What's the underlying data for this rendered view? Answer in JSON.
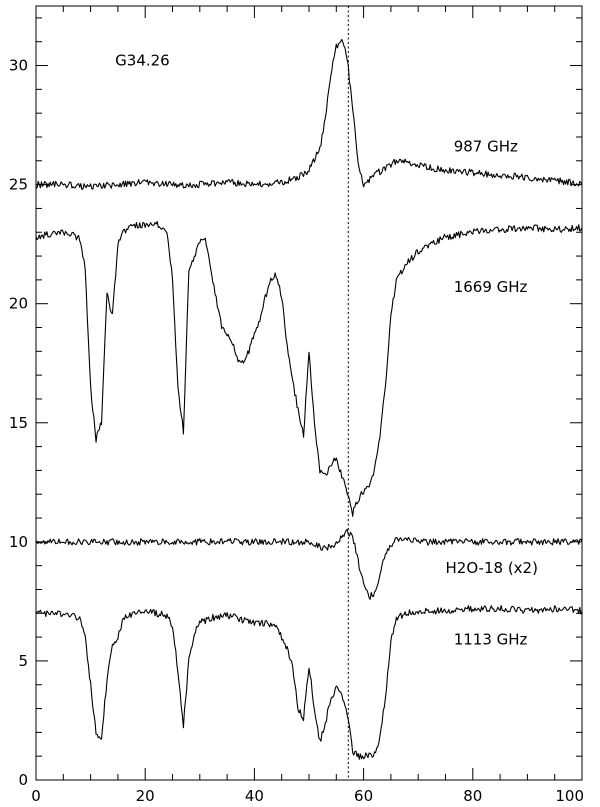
{
  "chart_data": {
    "type": "line",
    "title": "",
    "xlabel": "",
    "ylabel": "",
    "xlim": [
      0,
      100
    ],
    "ylim": [
      0,
      32.5
    ],
    "x_ticks": [
      0,
      20,
      40,
      60,
      80,
      100
    ],
    "y_ticks": [
      0,
      5,
      10,
      15,
      20,
      25,
      30
    ],
    "grid": false,
    "reference_line_x": 57.2,
    "annotations": [
      {
        "text": "G34.26",
        "x": 14.5,
        "y": 30.0
      },
      {
        "text": "987 GHz",
        "x": 76.5,
        "y": 26.4
      },
      {
        "text": "1669 GHz",
        "x": 76.5,
        "y": 20.5
      },
      {
        "text": "H2O-18 (x2)",
        "x": 75.0,
        "y": 8.7
      },
      {
        "text": "1113 GHz",
        "x": 76.5,
        "y": 5.7
      }
    ],
    "series": [
      {
        "name": "987 GHz",
        "x": [
          0,
          5,
          10,
          15,
          20,
          25,
          30,
          35,
          40,
          45,
          48,
          50,
          52,
          53,
          54,
          55,
          56,
          57,
          58,
          59,
          60,
          61,
          62,
          64,
          66,
          68,
          70,
          75,
          80,
          85,
          90,
          95,
          100
        ],
        "y": [
          25.0,
          25.0,
          24.9,
          25.0,
          25.1,
          25.0,
          25.0,
          25.1,
          25.0,
          25.1,
          25.3,
          25.6,
          26.5,
          27.8,
          29.6,
          30.8,
          31.1,
          30.3,
          28.2,
          26.0,
          25.0,
          25.2,
          25.4,
          25.7,
          26.0,
          26.0,
          25.8,
          25.6,
          25.5,
          25.4,
          25.3,
          25.2,
          25.0
        ]
      },
      {
        "name": "1669 GHz",
        "x": [
          0,
          2,
          4,
          6,
          8,
          9,
          10,
          11,
          12,
          13,
          14,
          15,
          16,
          17,
          18,
          20,
          22,
          24,
          25,
          26,
          27,
          28,
          29,
          30,
          31,
          32,
          34,
          36,
          37,
          38,
          39,
          40,
          41,
          42,
          43,
          44,
          45,
          46,
          47,
          48,
          49,
          50,
          51,
          52,
          53,
          54,
          55,
          56,
          57,
          58,
          59,
          60,
          61,
          62,
          63,
          64,
          65,
          66,
          68,
          70,
          75,
          80,
          85,
          90,
          95,
          100
        ],
        "y": [
          22.8,
          22.9,
          23.0,
          23.0,
          22.7,
          21.5,
          16.5,
          14.3,
          15.0,
          20.4,
          19.5,
          22.5,
          23.0,
          23.2,
          23.3,
          23.3,
          23.4,
          23.0,
          21.0,
          16.5,
          14.6,
          21.5,
          22.0,
          22.6,
          22.8,
          21.5,
          19.0,
          18.3,
          17.6,
          17.5,
          18.0,
          18.8,
          19.3,
          20.3,
          21.0,
          21.2,
          20.3,
          18.2,
          16.8,
          15.5,
          14.5,
          18.0,
          15.0,
          13.0,
          12.8,
          13.2,
          13.5,
          12.8,
          12.0,
          11.2,
          11.8,
          12.1,
          12.4,
          13.0,
          14.5,
          16.5,
          19.5,
          21.0,
          21.7,
          22.2,
          22.8,
          23.0,
          23.1,
          23.2,
          23.1,
          23.2
        ]
      },
      {
        "name": "H2O-18 (x2)",
        "x": [
          0,
          10,
          20,
          30,
          40,
          50,
          53,
          55,
          56,
          57,
          58,
          59,
          60,
          61,
          62,
          63,
          64,
          65,
          66,
          68,
          70,
          80,
          90,
          100
        ],
        "y": [
          10.0,
          10.0,
          10.0,
          10.0,
          10.0,
          10.0,
          9.7,
          9.9,
          10.2,
          10.5,
          10.2,
          9.2,
          8.2,
          7.7,
          7.8,
          8.6,
          9.5,
          9.9,
          10.1,
          10.1,
          10.0,
          10.0,
          10.0,
          10.0
        ]
      },
      {
        "name": "1113 GHz",
        "x": [
          0,
          3,
          6,
          8,
          9,
          10,
          11,
          12,
          13,
          14,
          15,
          16,
          18,
          20,
          22,
          24,
          25,
          26,
          27,
          28,
          29,
          30,
          32,
          34,
          36,
          38,
          40,
          42,
          44,
          46,
          47,
          48,
          49,
          50,
          51,
          52,
          53,
          54,
          55,
          56,
          57,
          58,
          59,
          60,
          61,
          62,
          63,
          64,
          65,
          66,
          68,
          70,
          75,
          80,
          85,
          90,
          95,
          100
        ],
        "y": [
          7.0,
          7.0,
          7.0,
          6.8,
          6.0,
          4.0,
          2.0,
          1.8,
          4.2,
          5.6,
          6.0,
          6.8,
          7.0,
          7.1,
          7.0,
          6.9,
          6.5,
          4.5,
          2.3,
          5.0,
          6.2,
          6.6,
          6.8,
          6.9,
          6.9,
          6.7,
          6.6,
          6.6,
          6.5,
          5.5,
          4.8,
          3.0,
          2.6,
          4.8,
          3.0,
          1.6,
          2.4,
          3.4,
          3.9,
          3.6,
          2.8,
          1.2,
          1.0,
          1.0,
          1.0,
          1.1,
          1.8,
          3.5,
          5.8,
          6.8,
          7.0,
          7.1,
          7.1,
          7.2,
          7.2,
          7.1,
          7.2,
          7.1
        ]
      }
    ]
  }
}
